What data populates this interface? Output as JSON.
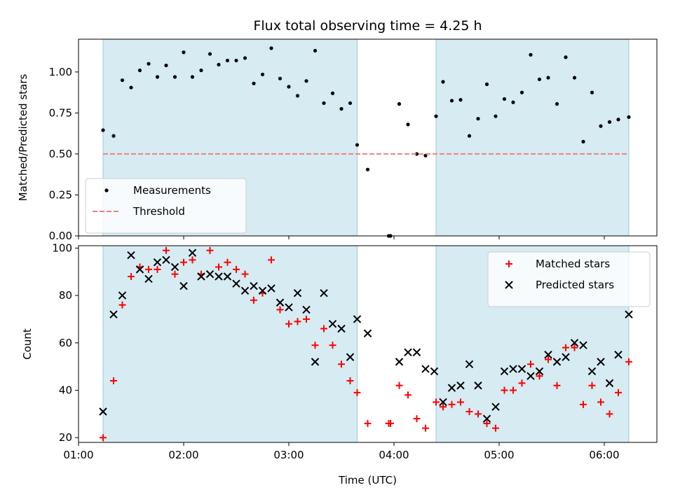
{
  "chart_data": [
    {
      "type": "scatter",
      "title": "Flux total observing time = 4.25 h",
      "xlabel": "",
      "ylabel": "Matched/Predicted stars",
      "xlim": [
        "01:00",
        "06:30"
      ],
      "ylim": [
        0,
        1.2
      ],
      "yticks": [
        "0.00",
        "0.25",
        "0.50",
        "0.75",
        "1.00"
      ],
      "shaded_intervals": [
        [
          "01:14",
          "03:39"
        ],
        [
          "04:24",
          "06:14"
        ]
      ],
      "legend_position": "lower left",
      "series": [
        {
          "name": "Measurements",
          "marker": "dot",
          "color": "#000000",
          "x": [
            "01:14",
            "01:20",
            "01:25",
            "01:30",
            "01:35",
            "01:40",
            "01:45",
            "01:50",
            "01:55",
            "02:00",
            "02:05",
            "02:10",
            "02:15",
            "02:20",
            "02:25",
            "02:30",
            "02:35",
            "02:40",
            "02:45",
            "02:50",
            "02:55",
            "03:00",
            "03:05",
            "03:10",
            "03:15",
            "03:20",
            "03:25",
            "03:30",
            "03:35",
            "03:39",
            "03:45",
            "03:57",
            "03:58",
            "04:03",
            "04:08",
            "04:13",
            "04:18",
            "04:24",
            "04:28",
            "04:33",
            "04:38",
            "04:43",
            "04:48",
            "04:53",
            "04:58",
            "05:03",
            "05:08",
            "05:13",
            "05:18",
            "05:23",
            "05:28",
            "05:33",
            "05:38",
            "05:43",
            "05:48",
            "05:53",
            "05:58",
            "06:03",
            "06:08",
            "06:14"
          ],
          "y": [
            0.645,
            0.61,
            0.95,
            0.905,
            1.01,
            1.05,
            0.97,
            1.04,
            0.97,
            1.12,
            0.97,
            1.01,
            1.11,
            1.045,
            1.07,
            1.07,
            1.085,
            0.93,
            0.985,
            1.145,
            0.96,
            0.91,
            0.855,
            0.945,
            1.13,
            0.81,
            0.87,
            0.775,
            0.81,
            0.555,
            0.405,
            0.0,
            0.0,
            0.805,
            0.68,
            0.5,
            0.49,
            0.73,
            0.94,
            0.825,
            0.83,
            0.61,
            0.715,
            0.925,
            0.73,
            0.835,
            0.815,
            0.875,
            1.105,
            0.955,
            0.965,
            0.805,
            1.09,
            0.965,
            0.575,
            0.875,
            0.67,
            0.695,
            0.71,
            0.725
          ]
        },
        {
          "name": "Threshold",
          "style": "dashed",
          "color": "#f08080",
          "x": [
            "01:14",
            "06:14"
          ],
          "y": [
            0.5,
            0.5
          ]
        }
      ]
    },
    {
      "type": "scatter",
      "title": "",
      "xlabel": "Time (UTC)",
      "ylabel": "Count",
      "xlim": [
        "01:00",
        "06:30"
      ],
      "ylim": [
        18,
        101
      ],
      "yticks": [
        20,
        40,
        60,
        80,
        100
      ],
      "xticks": [
        "01:00",
        "02:00",
        "03:00",
        "04:00",
        "05:00",
        "06:00"
      ],
      "shaded_intervals": [
        [
          "01:14",
          "03:39"
        ],
        [
          "04:24",
          "06:14"
        ]
      ],
      "legend_position": "upper right",
      "series": [
        {
          "name": "Matched stars",
          "marker": "plus",
          "color": "#ff0000",
          "x": [
            "01:14",
            "01:20",
            "01:25",
            "01:30",
            "01:35",
            "01:40",
            "01:45",
            "01:50",
            "01:55",
            "02:00",
            "02:05",
            "02:10",
            "02:15",
            "02:20",
            "02:25",
            "02:30",
            "02:35",
            "02:40",
            "02:45",
            "02:50",
            "02:55",
            "03:00",
            "03:05",
            "03:10",
            "03:15",
            "03:20",
            "03:25",
            "03:30",
            "03:35",
            "03:39",
            "03:45",
            "03:57",
            "03:58",
            "04:03",
            "04:08",
            "04:13",
            "04:18",
            "04:24",
            "04:28",
            "04:33",
            "04:38",
            "04:43",
            "04:48",
            "04:53",
            "04:58",
            "05:03",
            "05:08",
            "05:13",
            "05:18",
            "05:23",
            "05:28",
            "05:33",
            "05:38",
            "05:43",
            "05:48",
            "05:53",
            "05:58",
            "06:03",
            "06:08",
            "06:14"
          ],
          "y": [
            20,
            44,
            76,
            88,
            92,
            91,
            91,
            99,
            89,
            94,
            95,
            89,
            99,
            92,
            94,
            91,
            89,
            78,
            81,
            95,
            74,
            68,
            69,
            70,
            59,
            66,
            59,
            51,
            44,
            39,
            26,
            26,
            26,
            42,
            38,
            28,
            24,
            35,
            33,
            34,
            35,
            31,
            30,
            26,
            24,
            40,
            40,
            43,
            51,
            46,
            53,
            42,
            58,
            58,
            34,
            42,
            35,
            30,
            39,
            52
          ]
        },
        {
          "name": "Predicted stars",
          "marker": "x",
          "color": "#000000",
          "x": [
            "01:14",
            "01:20",
            "01:25",
            "01:30",
            "01:35",
            "01:40",
            "01:45",
            "01:50",
            "01:55",
            "02:00",
            "02:05",
            "02:10",
            "02:15",
            "02:20",
            "02:25",
            "02:30",
            "02:35",
            "02:40",
            "02:45",
            "02:50",
            "02:55",
            "03:00",
            "03:05",
            "03:10",
            "03:15",
            "03:20",
            "03:25",
            "03:30",
            "03:35",
            "03:39",
            "03:45",
            "04:03",
            "04:08",
            "04:13",
            "04:18",
            "04:23",
            "04:28",
            "04:33",
            "04:38",
            "04:43",
            "04:48",
            "04:53",
            "04:58",
            "05:03",
            "05:08",
            "05:13",
            "05:18",
            "05:23",
            "05:28",
            "05:33",
            "05:38",
            "05:43",
            "05:48",
            "05:53",
            "05:58",
            "06:03",
            "06:08",
            "06:14"
          ],
          "y": [
            31,
            72,
            80,
            97,
            91,
            87,
            94,
            95,
            92,
            84,
            98,
            88,
            89,
            88,
            88,
            85,
            82,
            84,
            82,
            83,
            77,
            75,
            81,
            74,
            52,
            81,
            68,
            66,
            54,
            70,
            64,
            52,
            56,
            56,
            49,
            48,
            35,
            41,
            42,
            51,
            42,
            28,
            33,
            48,
            49,
            49,
            46,
            48,
            55,
            52,
            54,
            60,
            59,
            48,
            52,
            43,
            55,
            72
          ]
        }
      ]
    }
  ]
}
